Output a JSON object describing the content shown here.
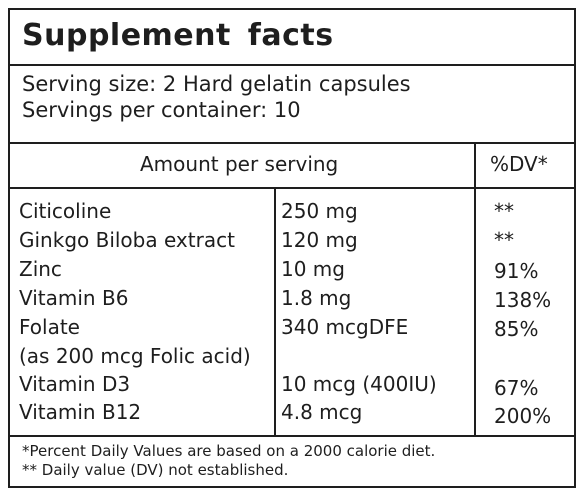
{
  "title": "Supplement  facts",
  "serving": {
    "size": "Serving size: 2 Hard gelatin capsules",
    "per_container": "Servings per container: 10"
  },
  "table": {
    "header_amount": "Amount per serving",
    "header_dv": "%DV*",
    "rows": [
      {
        "name": "Citicoline",
        "amount": "250 mg",
        "dv": "**"
      },
      {
        "name": "Ginkgo Biloba extract",
        "amount": "120 mg",
        "dv": "**"
      },
      {
        "name": "Zinc",
        "amount": "10 mg",
        "dv": "91%"
      },
      {
        "name": "Vitamin B6",
        "amount": "1.8 mg",
        "dv": "138%"
      },
      {
        "name": "Folate",
        "amount": "340 mcgDFE",
        "dv": "85%"
      },
      {
        "name": "(as 200 mcg Folic acid)",
        "amount": "",
        "dv": ""
      },
      {
        "name": "Vitamin D3",
        "amount": "10 mcg (400IU)",
        "dv": "67%"
      },
      {
        "name": "Vitamin B12",
        "amount": "4.8 mcg",
        "dv": "200%"
      }
    ]
  },
  "footnotes": {
    "line1": "*Percent Daily Values are based on a 2000 calorie diet.",
    "line2": "** Daily value (DV) not established."
  }
}
